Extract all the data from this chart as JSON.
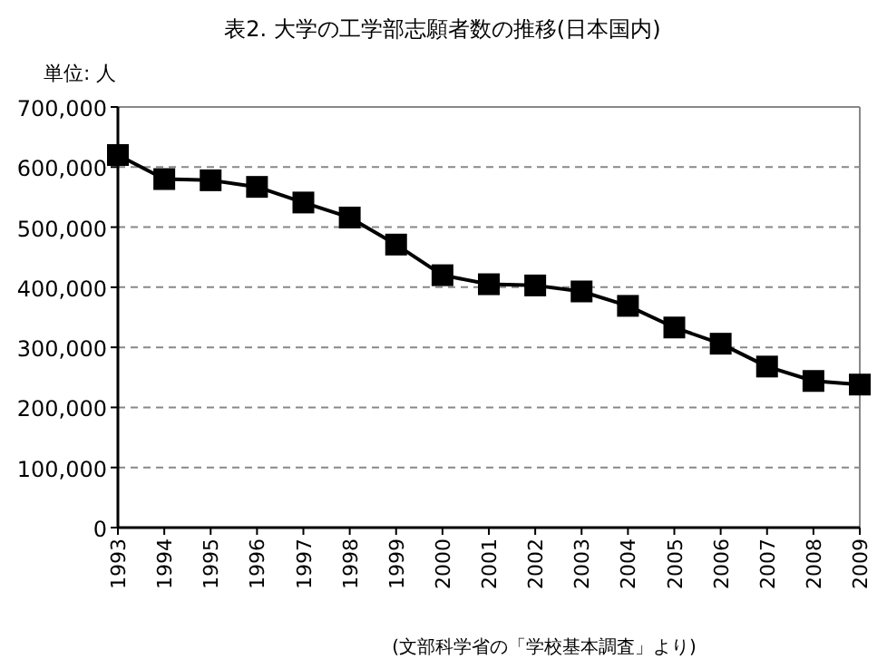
{
  "chart_data": {
    "type": "line",
    "title": "表2. 大学の工学部志願者数の推移(日本国内)",
    "ylabel": "単位: 人",
    "annotations": [
      "(文部科学省の「学校基本調査」より)"
    ],
    "categories": [
      "1993",
      "1994",
      "1995",
      "1996",
      "1997",
      "1998",
      "1999",
      "2000",
      "2001",
      "2002",
      "2003",
      "2004",
      "2005",
      "2006",
      "2007",
      "2008",
      "2009"
    ],
    "series": [
      {
        "color": "#000000",
        "values": [
          620000,
          580000,
          578000,
          567000,
          541000,
          516000,
          471000,
          420000,
          405000,
          403000,
          393000,
          369000,
          333000,
          306000,
          268000,
          244000,
          238000
        ]
      }
    ],
    "ylim": [
      0,
      700000
    ],
    "yticks": [
      {
        "value": 0,
        "label": "0"
      },
      {
        "value": 100000,
        "label": "100,000"
      },
      {
        "value": 200000,
        "label": "200,000"
      },
      {
        "value": 300000,
        "label": "300,000"
      },
      {
        "value": 400000,
        "label": "400,000"
      },
      {
        "value": 500000,
        "label": "500,000"
      },
      {
        "value": 600000,
        "label": "600,000"
      },
      {
        "value": 700000,
        "label": "700,000"
      }
    ],
    "grid": "y",
    "marker": "square",
    "line_style": "solid"
  }
}
